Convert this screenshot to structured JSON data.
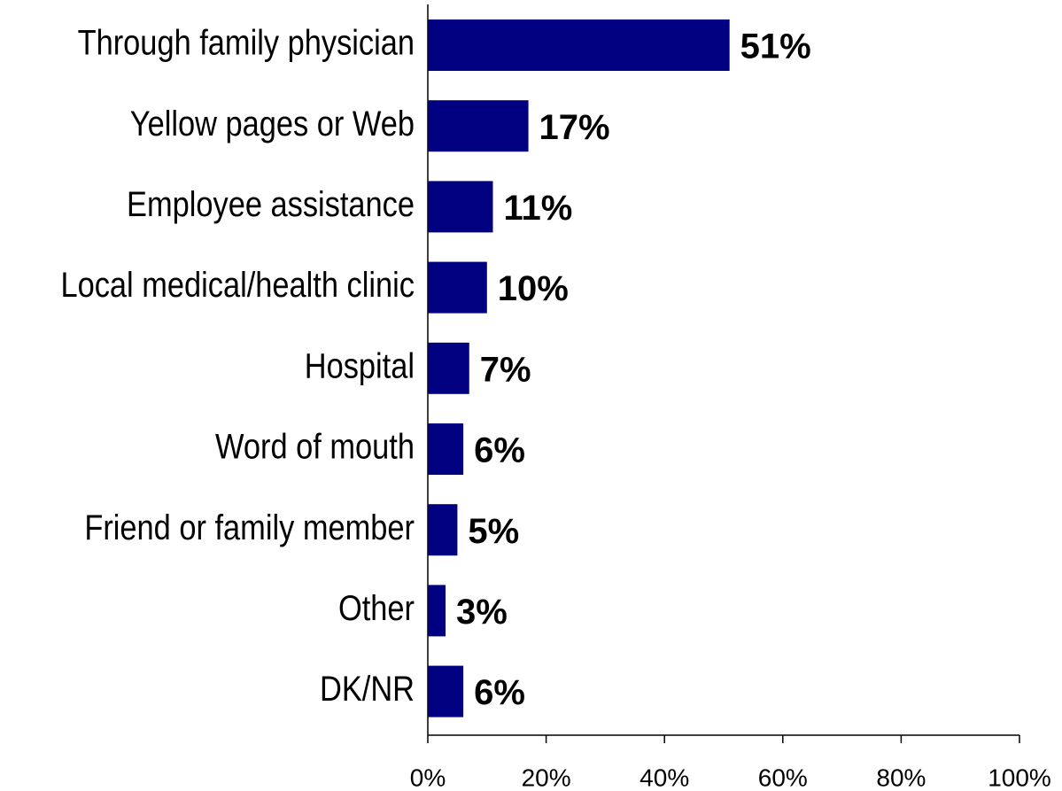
{
  "chart_data": {
    "type": "bar",
    "orientation": "horizontal",
    "categories": [
      "Through family physician",
      "Yellow pages or Web",
      "Employee assistance",
      "Local medical/health clinic",
      "Hospital",
      "Word of mouth",
      "Friend or family member",
      "Other",
      "DK/NR"
    ],
    "values": [
      51,
      17,
      11,
      10,
      7,
      6,
      5,
      3,
      6
    ],
    "value_labels": [
      "51%",
      "17%",
      "11%",
      "10%",
      "7%",
      "6%",
      "5%",
      "3%",
      "6%"
    ],
    "color": "#000080",
    "xlim": [
      0,
      100
    ],
    "xticks": [
      {
        "value": 0,
        "label": "0%"
      },
      {
        "value": 20,
        "label": "20%"
      },
      {
        "value": 40,
        "label": "40%"
      },
      {
        "value": 60,
        "label": "60%"
      },
      {
        "value": 80,
        "label": "80%"
      },
      {
        "value": 100,
        "label": "100%"
      }
    ],
    "grid": false
  }
}
